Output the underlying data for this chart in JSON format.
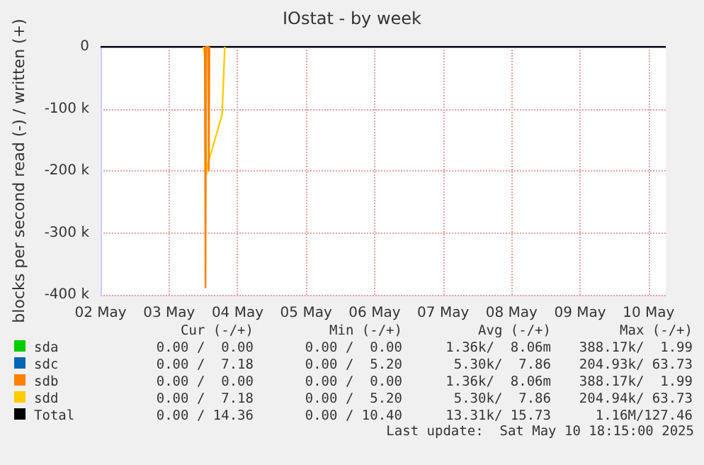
{
  "chart_data": {
    "type": "line",
    "title": "IOstat - by week",
    "ylabel": "blocks per second read (-) / written (+)",
    "xlim": [
      "2025-05-02T00:00",
      "2025-05-10T06:00"
    ],
    "xticks": [
      {
        "value": "2025-05-02T00:00",
        "label": "02 May"
      },
      {
        "value": "2025-05-03T00:00",
        "label": "03 May"
      },
      {
        "value": "2025-05-04T00:00",
        "label": "04 May"
      },
      {
        "value": "2025-05-05T00:00",
        "label": "05 May"
      },
      {
        "value": "2025-05-06T00:00",
        "label": "06 May"
      },
      {
        "value": "2025-05-07T00:00",
        "label": "07 May"
      },
      {
        "value": "2025-05-08T00:00",
        "label": "08 May"
      },
      {
        "value": "2025-05-09T00:00",
        "label": "09 May"
      },
      {
        "value": "2025-05-10T00:00",
        "label": "10 May"
      }
    ],
    "ylim": [
      -400000,
      0
    ],
    "yticks": [
      {
        "value": -400000,
        "label": "-400 k"
      },
      {
        "value": -300000,
        "label": "-300 k"
      },
      {
        "value": -200000,
        "label": "-200 k"
      },
      {
        "value": -100000,
        "label": "-100 k"
      },
      {
        "value": 0,
        "label": "0"
      }
    ],
    "grid": true,
    "legend": "bottom",
    "marker": "none",
    "line_style": "solid",
    "series": [
      {
        "name": "sda",
        "color": "#00cc00"
      },
      {
        "name": "sdc",
        "color": "#0066b3"
      },
      {
        "name": "sdb",
        "color": "#ff8000",
        "x": [
          "2025-05-03T12:30",
          "2025-05-03T12:45",
          "2025-05-03T13:00",
          "2025-05-03T13:40",
          "2025-05-03T13:55",
          "2025-05-03T14:10"
        ],
        "values": [
          0,
          -388000,
          0,
          0,
          -200000,
          0
        ]
      },
      {
        "name": "sdd",
        "color": "#ffcc00",
        "x": [
          "2025-05-03T12:00",
          "2025-05-03T12:40",
          "2025-05-03T13:07",
          "2025-05-03T13:30",
          "2025-05-03T18:33",
          "2025-05-03T19:32"
        ],
        "values": [
          0,
          -20000,
          -205000,
          -190000,
          -110000,
          0
        ]
      },
      {
        "name": "Total",
        "color": "#000000",
        "x": [
          "2025-05-02T00:00",
          "2025-05-10T06:00"
        ],
        "values": [
          0,
          0
        ]
      }
    ],
    "annotations": [
      "Cur (-/+)",
      "Min (-/+)",
      "Avg (-/+)",
      "Max (-/+)",
      "0.00 /  0.00",
      "0.00 /  0.00",
      "1.36k/  8.06m",
      "388.17k/  1.99",
      "0.00 /  7.18",
      "0.00 /  5.20",
      "5.30k/  7.86",
      "204.93k/ 63.73",
      "0.00 /  0.00",
      "0.00 /  0.00",
      "1.36k/  8.06m",
      "388.17k/  1.99",
      "0.00 /  7.18",
      "0.00 /  5.20",
      "5.30k/  7.86",
      "204.94k/ 63.73",
      "0.00 / 14.36",
      "0.00 / 10.40",
      "13.31k/ 15.73",
      "1.16M/127.46",
      "Last update:  Sat May 10 18:15:00 2025"
    ]
  }
}
